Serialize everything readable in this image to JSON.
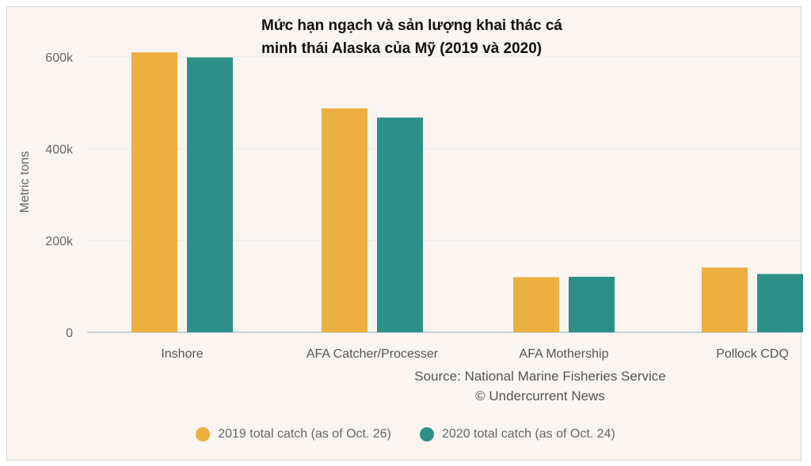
{
  "chart_data": {
    "type": "bar",
    "title": "Mức hạn ngạch và sản lượng khai thác cá minh thái Alaska của Mỹ (2019 và 2020)",
    "title_lines": [
      "Mức hạn ngạch và sản lượng khai thác cá",
      "minh thái Alaska của Mỹ (2019 và 2020)"
    ],
    "categories": [
      "Inshore",
      "AFA Catcher/Processer",
      "AFA Mothership",
      "Pollock CDQ"
    ],
    "series": [
      {
        "name": "2019 total catch (as of Oct. 26)",
        "color": "#ebb040",
        "values": [
          610000,
          488000,
          120000,
          141000
        ]
      },
      {
        "name": "2020 total catch (as of Oct. 24)",
        "color": "#2c9089",
        "values": [
          599000,
          468000,
          121000,
          127000
        ]
      }
    ],
    "xlabel": "",
    "ylabel": "Metric tons",
    "ylim": [
      0,
      650000
    ],
    "yticks": [
      {
        "value": 0,
        "label": "0"
      },
      {
        "value": 200000,
        "label": "200k"
      },
      {
        "value": 400000,
        "label": "400k"
      },
      {
        "value": 600000,
        "label": "600k"
      }
    ],
    "grid": true,
    "legend_position": "bottom",
    "source": [
      "Source: National Marine Fisheries Service",
      "© Undercurrent News"
    ]
  }
}
